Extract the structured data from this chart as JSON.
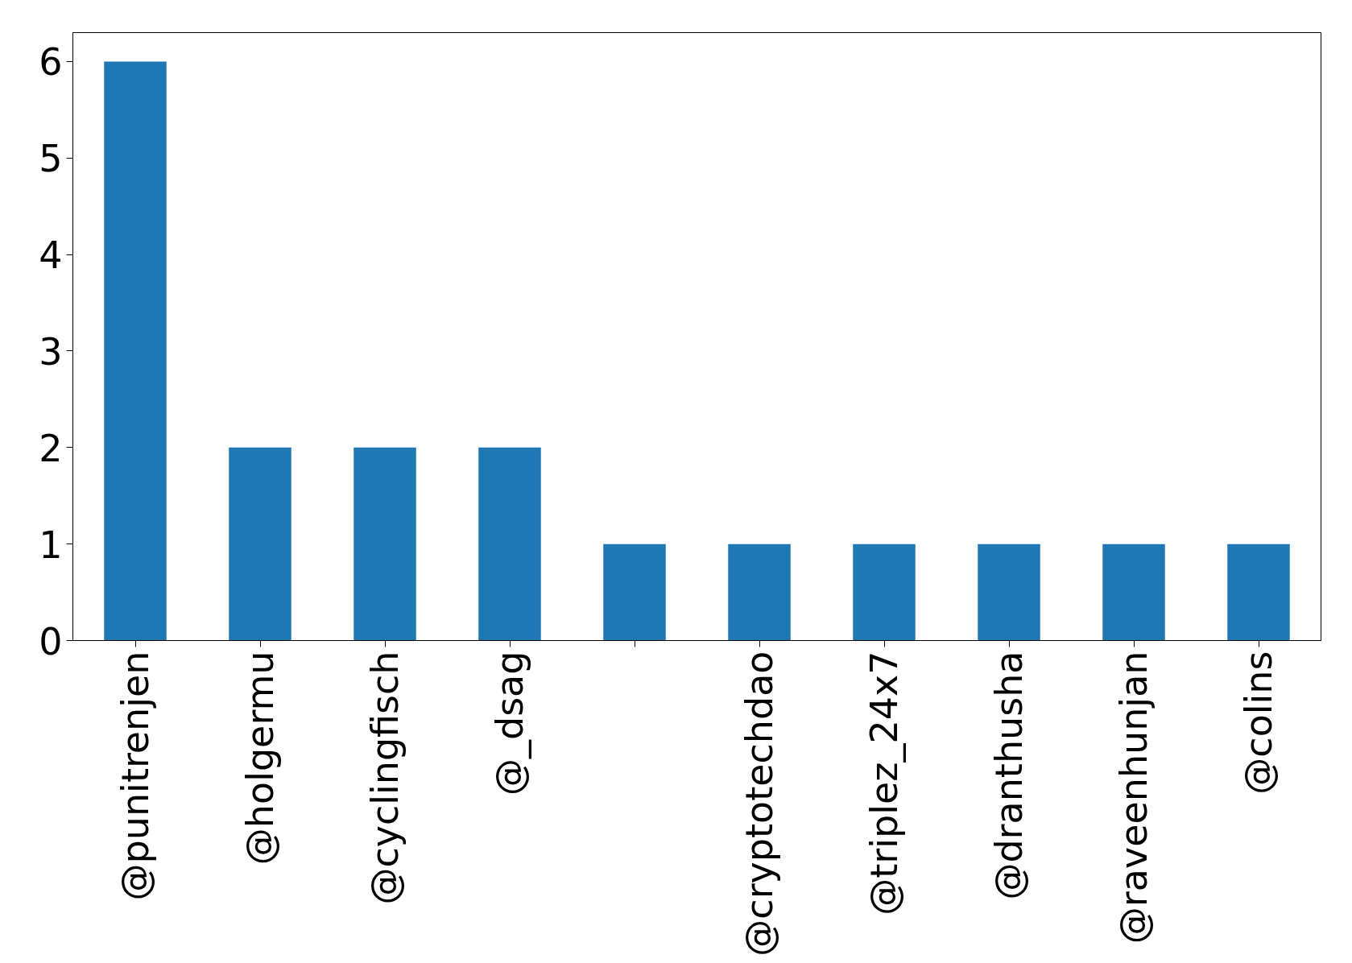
{
  "chart_data": {
    "type": "bar",
    "categories": [
      "@punitrenjen",
      "@holgermu",
      "@cyclingfisch",
      "@_dsag",
      null,
      "@cryptotechdao",
      "@triplez_24x7",
      "@dranthusha",
      "@raveenhunjan",
      "@colins"
    ],
    "values": [
      6,
      2,
      2,
      2,
      1,
      1,
      1,
      1,
      1,
      1
    ],
    "color": "#1f77b4",
    "ylim": [
      0,
      6.3
    ],
    "yticks": [
      0,
      1,
      2,
      3,
      4,
      5,
      6
    ],
    "grid": false
  }
}
